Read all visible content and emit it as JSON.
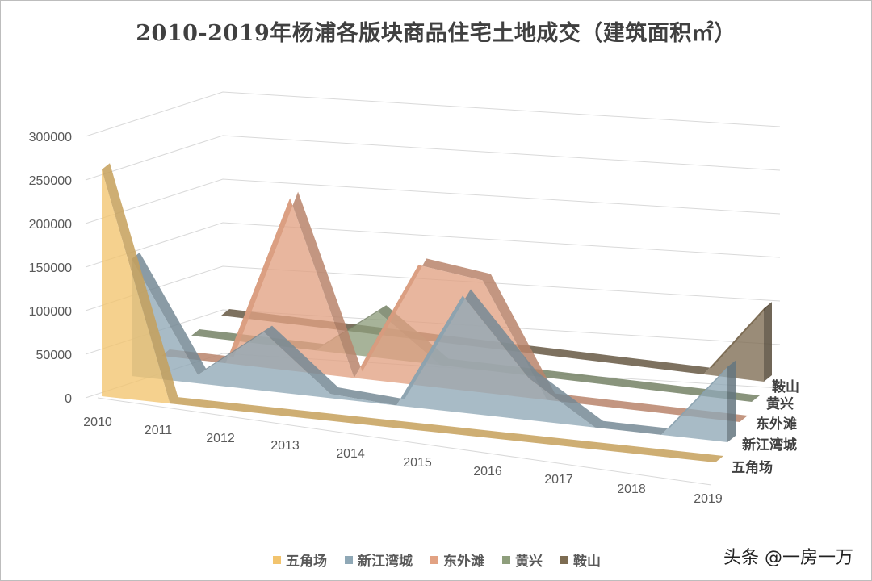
{
  "chart_data": {
    "type": "area",
    "variant": "3d-area",
    "title": "2010-2019年杨浦各版块商品住宅土地成交（建筑面积㎡）",
    "categories": [
      "2010",
      "2011",
      "2012",
      "2013",
      "2014",
      "2015",
      "2016",
      "2017",
      "2018",
      "2019"
    ],
    "yticks": [
      "0",
      "50000",
      "100000",
      "150000",
      "200000",
      "250000",
      "300000"
    ],
    "ylim": [
      0,
      300000
    ],
    "grid": true,
    "legend": "bottom",
    "series": [
      {
        "name": "五角场",
        "color": "#F2C46E",
        "values": [
          260000,
          0,
          0,
          0,
          0,
          0,
          0,
          0,
          0,
          0
        ]
      },
      {
        "name": "新江湾城",
        "color": "#8FA8B6",
        "values": [
          140000,
          10000,
          70000,
          5000,
          0,
          140000,
          50000,
          0,
          0,
          90000
        ]
      },
      {
        "name": "东外滩",
        "color": "#E2A283",
        "values": [
          0,
          0,
          215000,
          0,
          150000,
          140000,
          0,
          0,
          0,
          0
        ]
      },
      {
        "name": "黄兴",
        "color": "#8E9E7C",
        "values": [
          0,
          0,
          0,
          60000,
          0,
          0,
          0,
          0,
          0,
          0
        ]
      },
      {
        "name": "鞍山",
        "color": "#7D6C52",
        "values": [
          0,
          0,
          0,
          0,
          0,
          0,
          0,
          0,
          0,
          100000
        ]
      }
    ]
  },
  "watermark": "头条 @一房一万"
}
